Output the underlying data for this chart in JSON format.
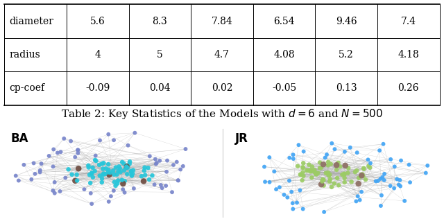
{
  "table_data": [
    [
      "diameter",
      "5.6",
      "8.3",
      "7.84",
      "6.54",
      "9.46",
      "7.4"
    ],
    [
      "radius",
      "4",
      "5",
      "4.7",
      "4.08",
      "5.2",
      "4.18"
    ],
    [
      "cp-coef",
      "-0.09",
      "0.04",
      "0.02",
      "-0.05",
      "0.13",
      "0.26"
    ]
  ],
  "caption": "Table 2: Key Statistics of the Models with $d = 6$ and $N = 500$",
  "label_BA": "BA",
  "label_JR": "JR",
  "bg_color": "#ffffff",
  "font_size_table": 10,
  "font_size_caption": 11,
  "font_size_label": 12,
  "edge_color": "#aaaaaa",
  "ba_color_main": "#26c6da",
  "ba_color_mid": "#7986cb",
  "ba_color_hub": "#6d4c41",
  "jr_color_main": "#9ccc65",
  "jr_color_mid": "#42a5f5",
  "jr_color_hub": "#8d6e63"
}
